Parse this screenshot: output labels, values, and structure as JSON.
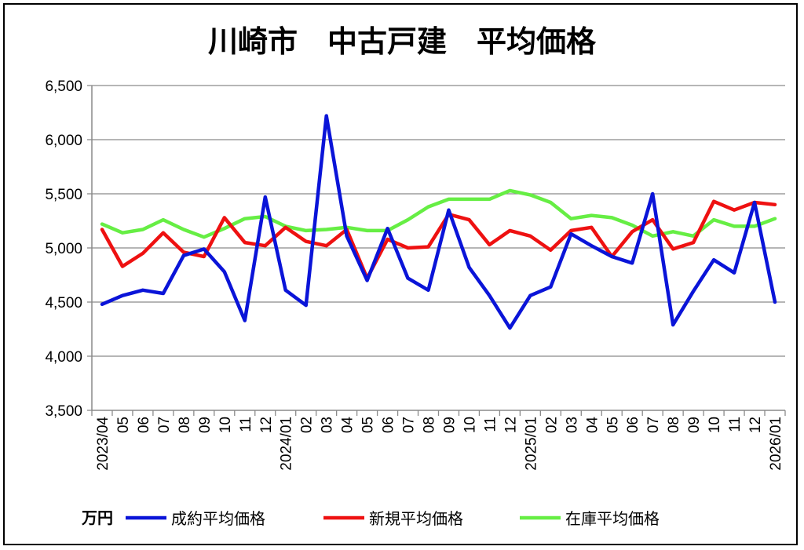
{
  "chart_data": {
    "type": "line",
    "title": "川崎市　中古戸建　平均価格",
    "unit": "万円",
    "ylim": [
      3500,
      6500
    ],
    "yticks": [
      "3,500",
      "4,000",
      "4,500",
      "5,000",
      "5,500",
      "6,000",
      "6,500"
    ],
    "grid": true,
    "legend_position": "bottom",
    "x": [
      "2023/04",
      "05",
      "06",
      "07",
      "08",
      "09",
      "10",
      "11",
      "12",
      "2024/01",
      "02",
      "03",
      "04",
      "05",
      "06",
      "07",
      "08",
      "09",
      "10",
      "11",
      "12",
      "2025/01",
      "02",
      "03",
      "04",
      "05",
      "06",
      "07",
      "08",
      "09",
      "10",
      "11",
      "12",
      "2026/01"
    ],
    "series": [
      {
        "name": "成約平均価格",
        "color": "#0a14d8",
        "values": [
          4480,
          4560,
          4610,
          4580,
          4930,
          4990,
          4780,
          4330,
          5470,
          4610,
          4470,
          6220,
          5110,
          4700,
          5180,
          4720,
          4610,
          5350,
          4820,
          4560,
          4260,
          4560,
          4640,
          5130,
          5020,
          4920,
          4860,
          5500,
          4290,
          4600,
          4890,
          4770,
          5420,
          4500
        ]
      },
      {
        "name": "新規平均価格",
        "color": "#ee1111",
        "values": [
          5170,
          4830,
          4950,
          5140,
          4960,
          4920,
          5280,
          5050,
          5020,
          5190,
          5060,
          5020,
          5170,
          4720,
          5080,
          5000,
          5010,
          5310,
          5260,
          5030,
          5160,
          5110,
          4980,
          5160,
          5190,
          4920,
          5150,
          5260,
          4990,
          5050,
          5430,
          5350,
          5420,
          5400
        ]
      },
      {
        "name": "在庫平均価格",
        "color": "#66ee44",
        "values": [
          5220,
          5140,
          5170,
          5260,
          5170,
          5100,
          5180,
          5270,
          5290,
          5200,
          5160,
          5170,
          5190,
          5160,
          5160,
          5260,
          5380,
          5450,
          5450,
          5450,
          5530,
          5490,
          5420,
          5270,
          5300,
          5280,
          5210,
          5110,
          5150,
          5110,
          5260,
          5200,
          5200,
          5270
        ]
      }
    ]
  }
}
